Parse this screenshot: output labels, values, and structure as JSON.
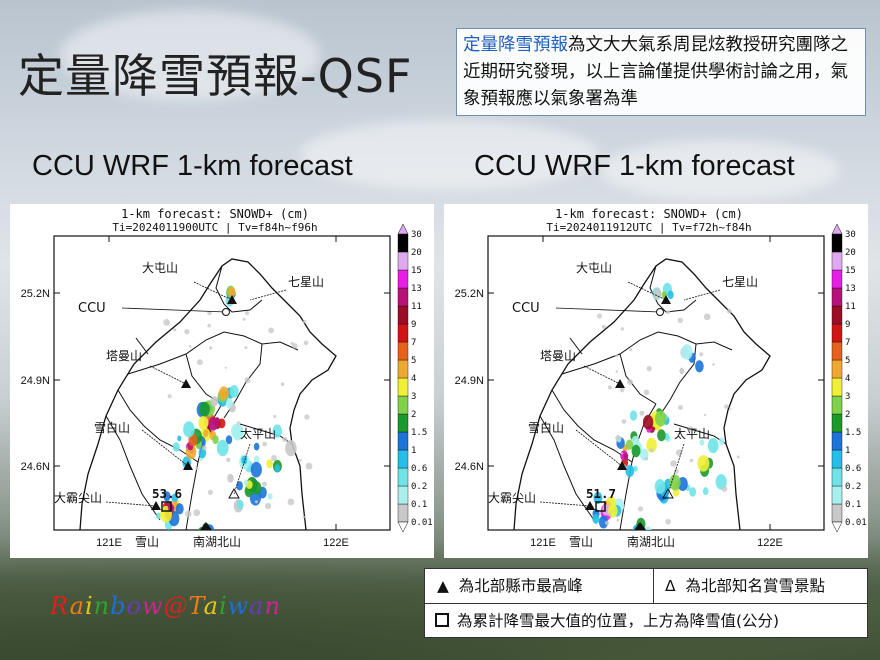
{
  "slide": {
    "title": "定量降雪預報-QSF",
    "disclaimer_highlight": "定量降雪預報",
    "disclaimer_rest": "為文大大氣系周昆炫教授研究團隊之近期研究發現，以上言論僅提供學術討論之用，氣象預報應以氣象署為準",
    "watermark": "Rainbow@Taiwan"
  },
  "legend_notes": {
    "triangle_filled": "▲",
    "triangle_filled_text": "為北部縣市最高峰",
    "triangle_open": "Δ",
    "triangle_open_text": "為北部知名賞雪景點",
    "square": "為累計降雪最大值的位置，上方為降雪值(公分)"
  },
  "colors": {
    "scale": [
      "#ffffff",
      "#c8c8c8",
      "#a8f0f0",
      "#6fe3e8",
      "#24bfe8",
      "#1c73d8",
      "#1b9a2c",
      "#7fd24a",
      "#f0f036",
      "#f0a930",
      "#e8611a",
      "#d21414",
      "#9c0c26",
      "#b8127a",
      "#e81ee8",
      "#e0a8f0"
    ],
    "title_highlight": "#1f5fbf"
  },
  "chart_data": [
    {
      "type": "heatmap",
      "panel_title": "CCU WRF 1-km forecast",
      "title": "1-km forecast: SNOWD+ (cm)",
      "subtitle": "Ti=2024011900UTC | Tv=f84h~f96h",
      "xticks": [
        "121E",
        "122E"
      ],
      "yticks": [
        "25.2N",
        "24.9N",
        "24.6N"
      ],
      "colorbar_levels": [
        "0.01",
        "0.1",
        "0.2",
        "0.6",
        "1",
        "1.5",
        "2",
        "3",
        "4",
        "5",
        "7",
        "9",
        "11",
        "13",
        "15",
        "20",
        "30"
      ],
      "max_value": "53.6",
      "labels": [
        "大屯山",
        "七星山",
        "CCU",
        "塔曼山",
        "雪白山",
        "太平山",
        "大霸尖山",
        "雪山",
        "南湖北山"
      ]
    },
    {
      "type": "heatmap",
      "panel_title": "CCU WRF 1-km forecast",
      "title": "1-km forecast: SNOWD+ (cm)",
      "subtitle": "Ti=2024011912UTC | Tv=f72h~f84h",
      "xticks": [
        "121E",
        "122E"
      ],
      "yticks": [
        "25.2N",
        "24.9N",
        "24.6N"
      ],
      "colorbar_levels": [
        "0.01",
        "0.1",
        "0.2",
        "0.6",
        "1",
        "1.5",
        "2",
        "3",
        "4",
        "5",
        "7",
        "9",
        "11",
        "13",
        "15",
        "20",
        "30"
      ],
      "max_value": "51.7",
      "labels": [
        "大屯山",
        "七星山",
        "CCU",
        "塔曼山",
        "雪白山",
        "太平山",
        "大霸尖山",
        "雪山",
        "南湖北山"
      ]
    }
  ]
}
